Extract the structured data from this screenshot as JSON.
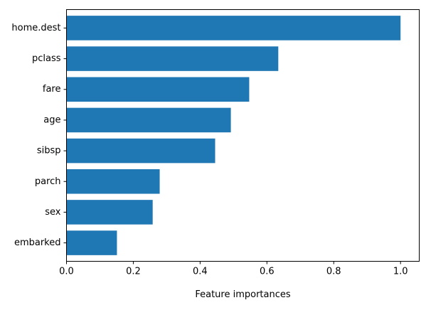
{
  "chart_data": {
    "type": "bar",
    "orientation": "horizontal",
    "categories": [
      "home.dest",
      "pclass",
      "fare",
      "age",
      "sibsp",
      "parch",
      "sex",
      "embarked"
    ],
    "values": [
      1.0,
      0.634,
      0.547,
      0.492,
      0.445,
      0.279,
      0.258,
      0.151
    ],
    "title": "",
    "xlabel": "Feature importances",
    "ylabel": "",
    "xlim": [
      0.0,
      1.056
    ],
    "xticks": [
      0.0,
      0.2,
      0.4,
      0.6,
      0.8,
      1.0
    ],
    "xtick_labels": [
      "0.0",
      "0.2",
      "0.4",
      "0.6",
      "0.8",
      "1.0"
    ],
    "grid": false,
    "legend": "none",
    "bar_color": "#1f77b4"
  }
}
